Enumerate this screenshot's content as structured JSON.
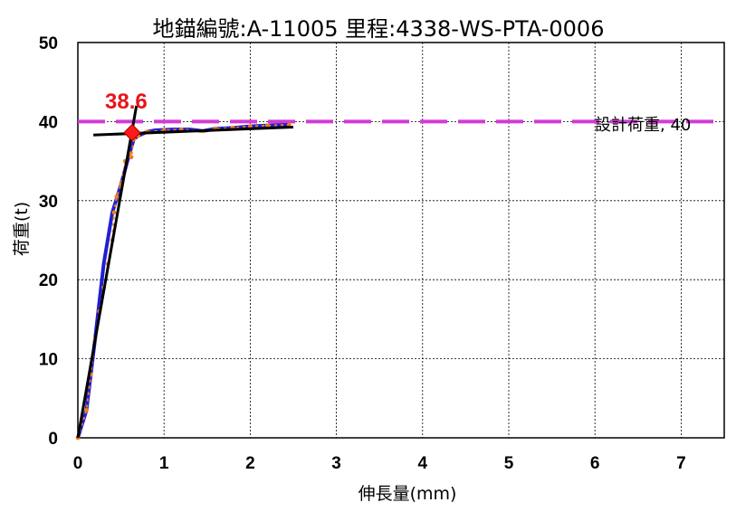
{
  "chart_data": {
    "type": "line",
    "title": "地錨編號:A-11005  里程:4338-WS-PTA-0006",
    "xlabel": "伸長量(mm)",
    "ylabel": "荷重(t)",
    "xlim": [
      0,
      7.5
    ],
    "ylim": [
      0,
      50
    ],
    "xticks": [
      0,
      1,
      2,
      3,
      4,
      5,
      6,
      7
    ],
    "yticks": [
      0,
      10,
      20,
      30,
      40,
      50
    ],
    "grid": true,
    "series": [
      {
        "role": "load-curve",
        "color": "#1f1fd6",
        "x": [
          0,
          0.1,
          0.2,
          0.3,
          0.4,
          0.5,
          0.55,
          0.6,
          0.65,
          0.7,
          0.8,
          0.9,
          1.1,
          1.3,
          1.45,
          1.6,
          1.8,
          2.0,
          2.2,
          2.45
        ],
        "y": [
          0,
          3.5,
          12.5,
          22,
          28.5,
          32,
          34,
          36,
          37.8,
          38.2,
          38.7,
          38.9,
          39,
          39,
          38.8,
          39.1,
          39.2,
          39.4,
          39.5,
          39.6
        ]
      },
      {
        "role": "measured-points",
        "color": "#f07f1a",
        "x": [
          0,
          0.1,
          0.15,
          0.2,
          0.25,
          0.3,
          0.35,
          0.4,
          0.42,
          0.45,
          0.5,
          0.55,
          0.6,
          0.62,
          0.65,
          0.7,
          0.8,
          1.0,
          1.2,
          1.45,
          1.6,
          1.8,
          2.0,
          2.2,
          2.45
        ],
        "y": [
          0,
          3.5,
          8,
          12.5,
          16,
          19,
          22,
          25,
          28.5,
          30.5,
          32,
          35,
          36,
          35.5,
          37.8,
          38.2,
          38.7,
          38.9,
          39,
          38.8,
          39.1,
          39.2,
          39.4,
          39.5,
          39.6
        ]
      }
    ],
    "tangent_lines": [
      {
        "color": "#000000",
        "x": [
          0,
          0.68
        ],
        "y": [
          0,
          42
        ]
      },
      {
        "color": "#000000",
        "x": [
          0.18,
          2.5
        ],
        "y": [
          38.3,
          39.3
        ]
      }
    ],
    "design_load": {
      "label": "設計荷重, 40",
      "value": 40,
      "color": "#d43ad6"
    },
    "yield_point": {
      "label": "38.6",
      "x": 0.63,
      "y": 38.6,
      "color": "#ff1a1a"
    }
  }
}
